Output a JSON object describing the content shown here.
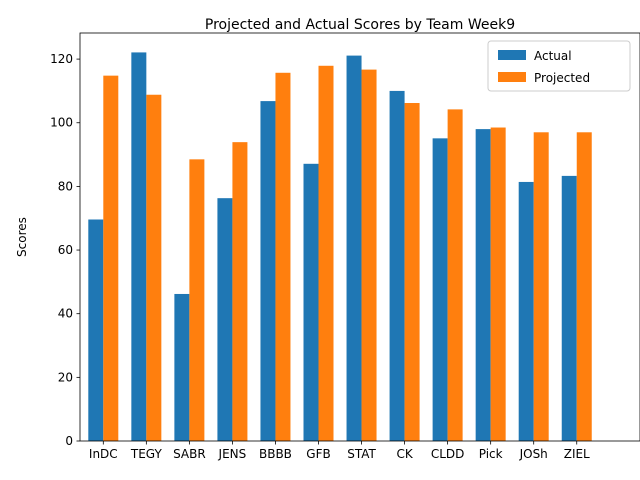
{
  "chart_data": {
    "type": "bar",
    "title": "Projected and Actual Scores by Team Week9",
    "xlabel": "",
    "ylabel": "Scores",
    "categories": [
      "InDC",
      "TEGY",
      "SABR",
      "JENS",
      "BBBB",
      "GFB",
      "STAT",
      "CK",
      "CLDD",
      "Pick",
      "JOSh",
      "ZIEL"
    ],
    "series": [
      {
        "name": "Actual",
        "color": "#1f77b4",
        "values": [
          69.6,
          122.1,
          46.2,
          76.3,
          106.8,
          87.1,
          121.1,
          110.0,
          95.1,
          98.0,
          81.4,
          83.3
        ]
      },
      {
        "name": "Projected",
        "color": "#ff7f0e",
        "values": [
          114.8,
          108.8,
          88.5,
          93.9,
          115.7,
          117.9,
          116.7,
          106.2,
          104.2,
          98.5,
          97.0,
          97.0
        ]
      }
    ],
    "ylim": [
      0,
      128.2
    ],
    "yticks": [
      0,
      20,
      40,
      60,
      80,
      100,
      120
    ],
    "grid": false,
    "legend_position": "top-right"
  }
}
